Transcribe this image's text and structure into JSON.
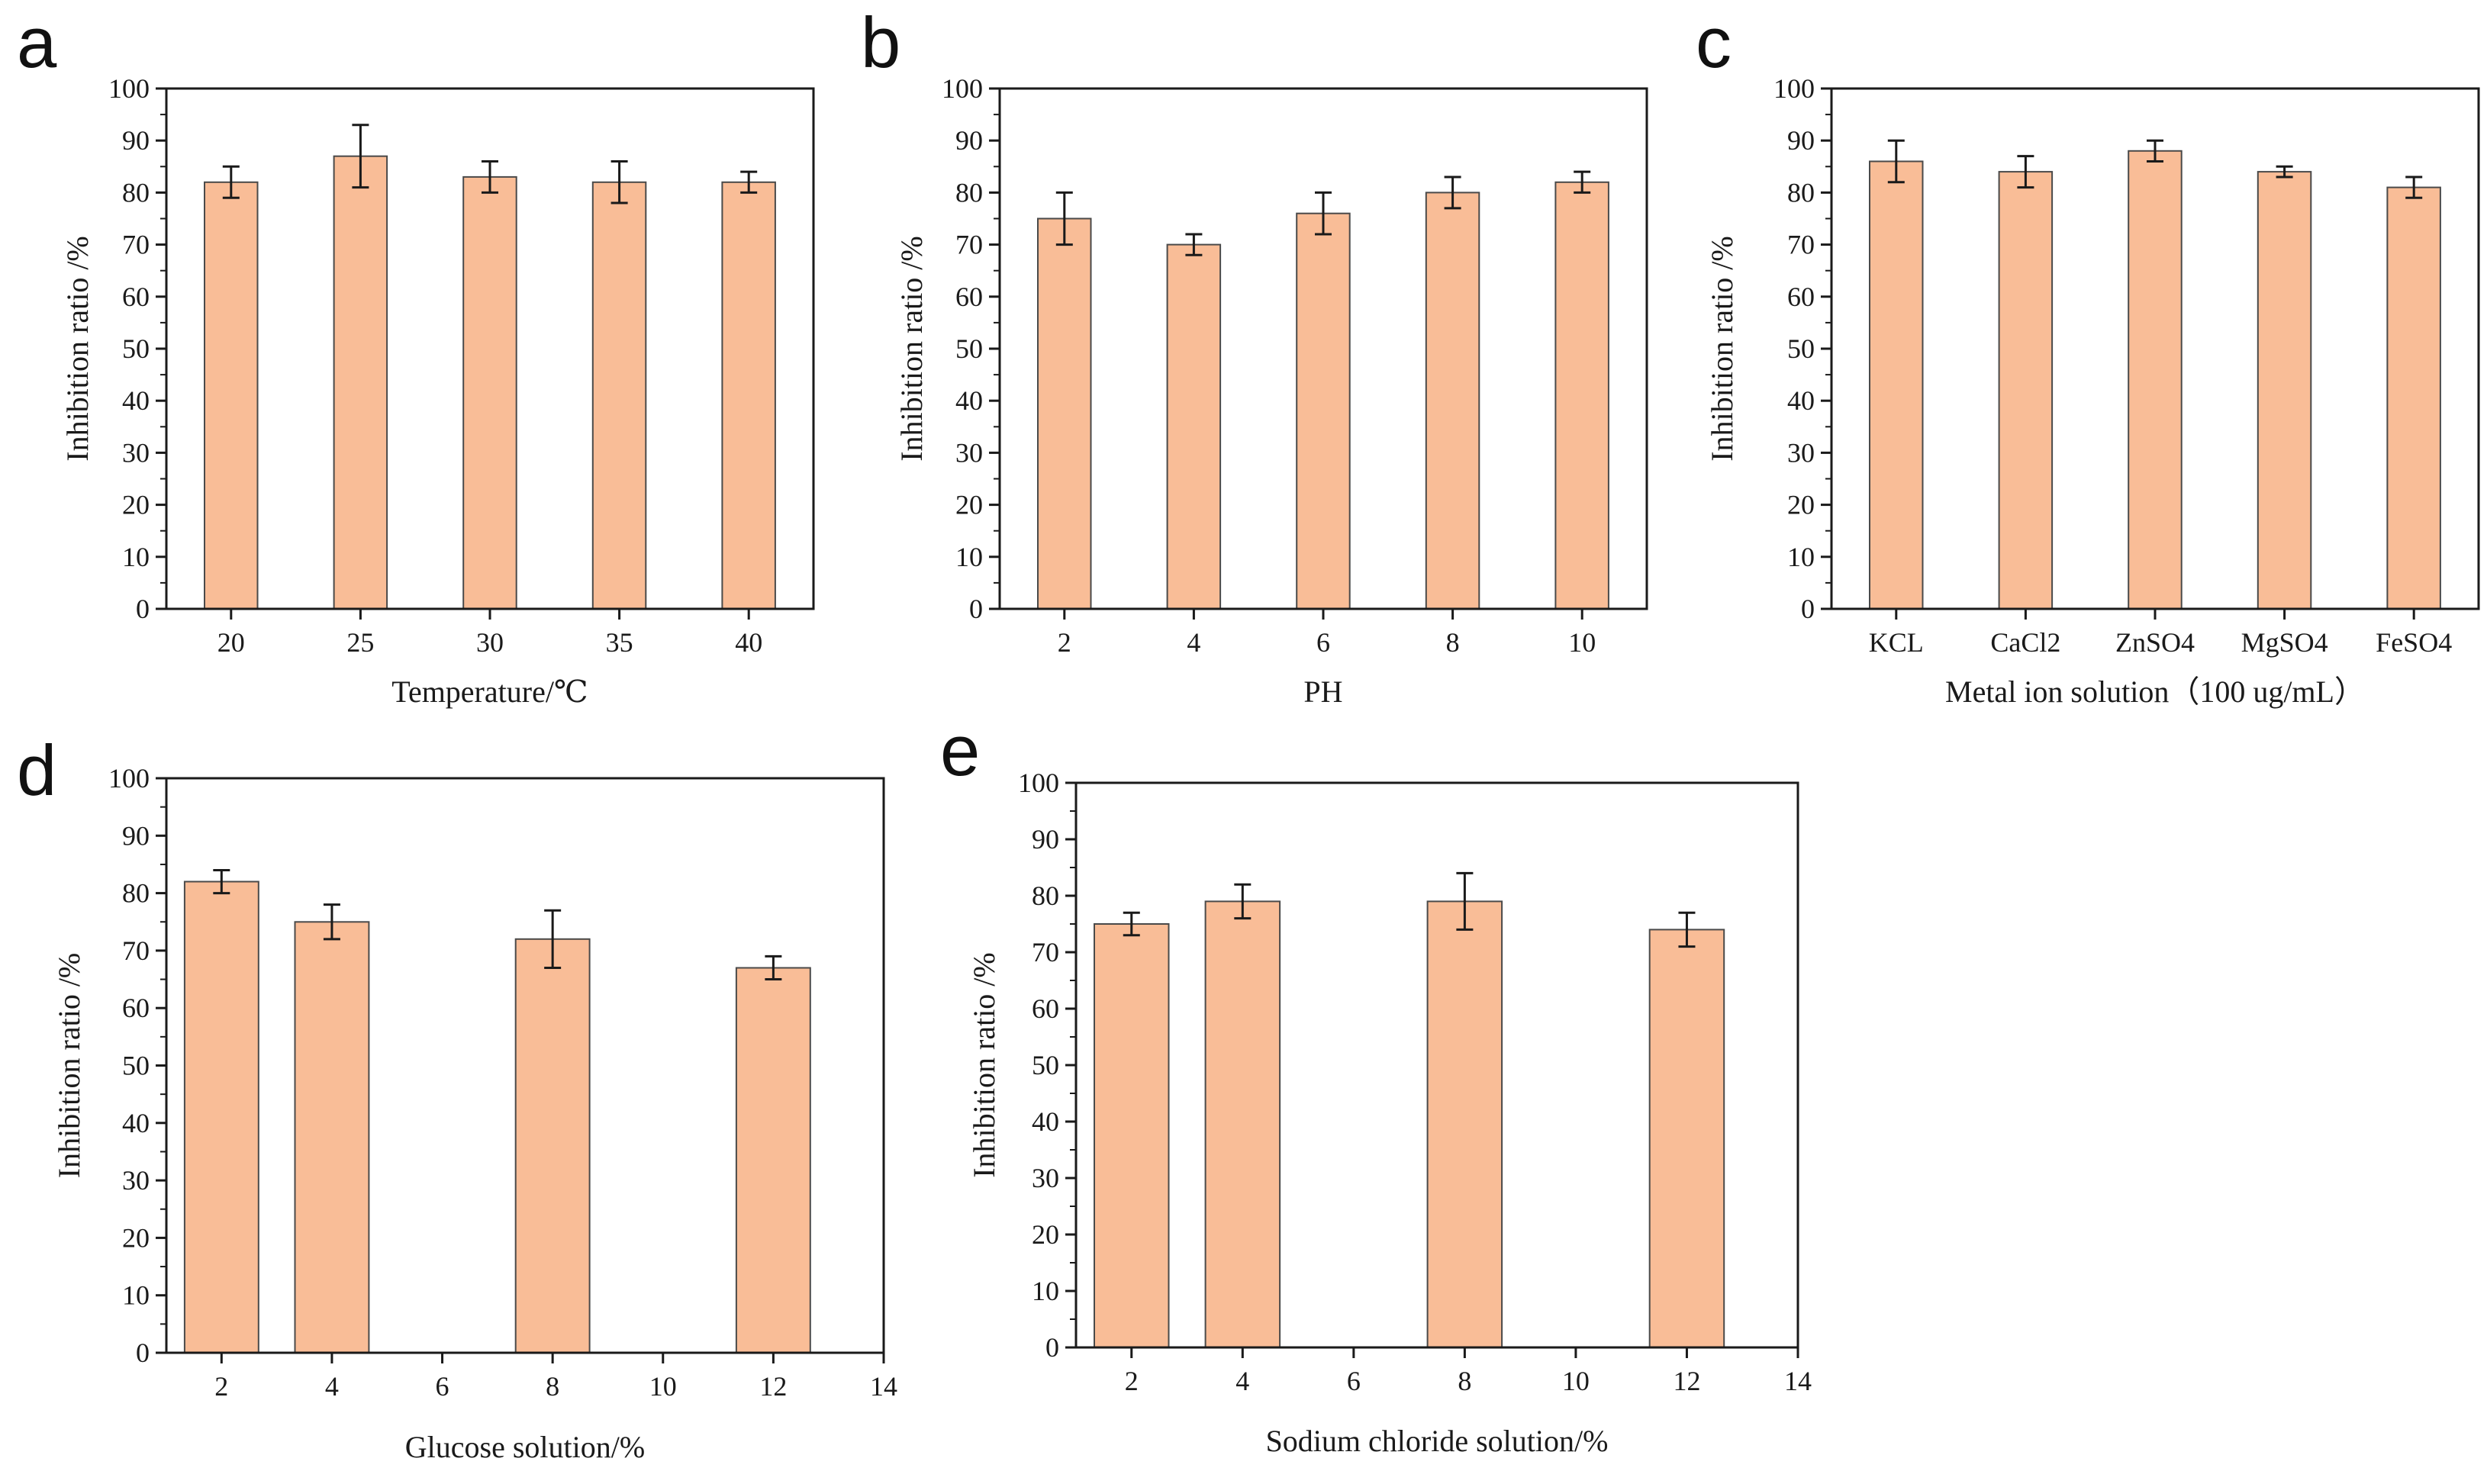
{
  "colors": {
    "bar_fill": "#F9BD97",
    "bar_stroke": "#4a4a4a",
    "axis": "#1a1a1a",
    "background": "#ffffff"
  },
  "chart_data": [
    {
      "panel": "a",
      "type": "bar",
      "categories": [
        "20",
        "25",
        "30",
        "35",
        "40"
      ],
      "values": [
        82,
        87,
        83,
        82,
        82
      ],
      "errors": [
        3,
        6,
        3,
        4,
        2
      ],
      "xlabel": "Temperature/℃",
      "ylabel": "Inhibition ratio /%",
      "ylim": [
        0,
        100
      ],
      "yticks": [
        0,
        10,
        20,
        30,
        40,
        50,
        60,
        70,
        80,
        90,
        100
      ],
      "grid": false
    },
    {
      "panel": "b",
      "type": "bar",
      "categories": [
        "2",
        "4",
        "6",
        "8",
        "10"
      ],
      "values": [
        75,
        70,
        76,
        80,
        82
      ],
      "errors": [
        5,
        2,
        4,
        3,
        2
      ],
      "xlabel": "PH",
      "ylabel": "Inhibition ratio /%",
      "ylim": [
        0,
        100
      ],
      "yticks": [
        0,
        10,
        20,
        30,
        40,
        50,
        60,
        70,
        80,
        90,
        100
      ],
      "grid": false
    },
    {
      "panel": "c",
      "type": "bar",
      "categories": [
        "KCL",
        "CaCl2",
        "ZnSO4",
        "MgSO4",
        "FeSO4"
      ],
      "values": [
        86,
        84,
        88,
        84,
        81
      ],
      "errors": [
        4,
        3,
        2,
        1,
        2
      ],
      "xlabel": "Metal ion solution（100 ug/mL）",
      "ylabel": "Inhibition ratio /%",
      "ylim": [
        0,
        100
      ],
      "yticks": [
        0,
        10,
        20,
        30,
        40,
        50,
        60,
        70,
        80,
        90,
        100
      ],
      "grid": false
    },
    {
      "panel": "d",
      "type": "bar",
      "x": [
        2,
        4,
        8,
        12
      ],
      "values": [
        82,
        75,
        72,
        67
      ],
      "errors": [
        2,
        3,
        5,
        2
      ],
      "xlim": [
        1,
        14
      ],
      "xticks": [
        2,
        4,
        6,
        8,
        10,
        12,
        14
      ],
      "xlabel": "Glucose solution/%",
      "ylabel": "Inhibition ratio /%",
      "ylim": [
        0,
        100
      ],
      "yticks": [
        0,
        10,
        20,
        30,
        40,
        50,
        60,
        70,
        80,
        90,
        100
      ],
      "grid": false
    },
    {
      "panel": "e",
      "type": "bar",
      "x": [
        2,
        4,
        8,
        12
      ],
      "values": [
        75,
        79,
        79,
        74
      ],
      "errors": [
        2,
        3,
        5,
        3
      ],
      "xlim": [
        1,
        14
      ],
      "xticks": [
        2,
        4,
        6,
        8,
        10,
        12,
        14
      ],
      "xlabel": "Sodium chloride solution/%",
      "ylabel": "Inhibition ratio /%",
      "ylim": [
        0,
        100
      ],
      "yticks": [
        0,
        10,
        20,
        30,
        40,
        50,
        60,
        70,
        80,
        90,
        100
      ],
      "grid": false
    }
  ]
}
